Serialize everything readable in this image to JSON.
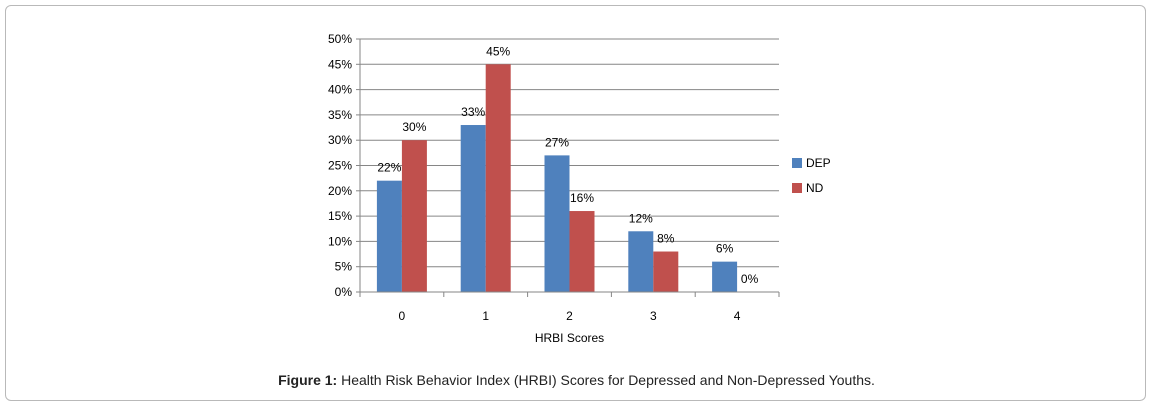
{
  "chart_data": {
    "type": "bar",
    "categories": [
      "0",
      "1",
      "2",
      "3",
      "4"
    ],
    "series": [
      {
        "name": "DEP",
        "values": [
          22,
          33,
          27,
          12,
          6
        ],
        "color": "#4f81bd"
      },
      {
        "name": "ND",
        "values": [
          30,
          45,
          16,
          8,
          0
        ],
        "color": "#c0504d"
      }
    ],
    "xlabel": "HRBI Scores",
    "ylabel": "",
    "ylim": [
      0,
      50
    ],
    "yticks": [
      "0%",
      "5%",
      "10%",
      "15%",
      "20%",
      "25%",
      "30%",
      "35%",
      "40%",
      "45%",
      "50%"
    ],
    "value_suffix": "%",
    "grid": true,
    "legend_position": "right"
  },
  "caption": {
    "label": "Figure 1:",
    "text": " Health Risk Behavior Index (HRBI) Scores for Depressed and Non-Depressed Youths."
  }
}
